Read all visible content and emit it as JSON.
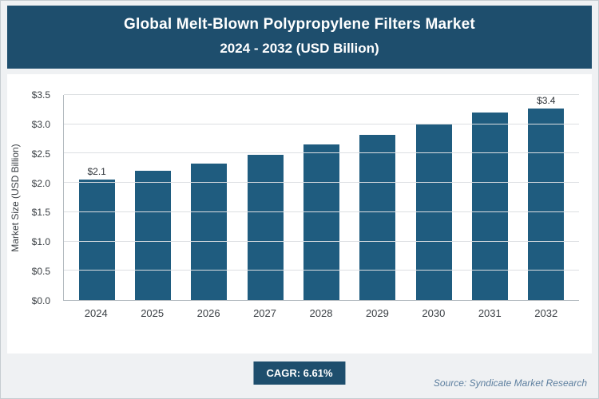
{
  "header": {
    "title_line1": "Global Melt-Blown Polypropylene Filters Market",
    "title_line2": "2024 - 2032 (USD Billion)"
  },
  "chart_data": {
    "type": "bar",
    "title": "Global Melt-Blown Polypropylene Filters Market 2024 - 2032 (USD Billion)",
    "categories": [
      "2024",
      "2025",
      "2026",
      "2027",
      "2028",
      "2029",
      "2030",
      "2031",
      "2032"
    ],
    "values": [
      2.05,
      2.2,
      2.33,
      2.48,
      2.65,
      2.82,
      3.0,
      3.2,
      3.42
    ],
    "bar_labels": [
      "$2.1",
      "",
      "",
      "",
      "",
      "",
      "",
      "",
      "$3.4"
    ],
    "xlabel": "",
    "ylabel": "Market Size (USD Billion)",
    "ylim": [
      0,
      3.5
    ],
    "ytick_step": 0.5,
    "ytick_labels": [
      "$0.0",
      "$0.5",
      "$1.0",
      "$1.5",
      "$2.0",
      "$2.5",
      "$3.0",
      "$3.5"
    ],
    "grid": true,
    "legend": false,
    "bar_color": "#1f5c7f"
  },
  "footer": {
    "cagr_label": "CAGR: 6.61%",
    "source": "Source: Syndicate Market Research"
  },
  "colors": {
    "accent_navy": "#1e4e6d",
    "bar": "#1f5c7f",
    "background": "#eff1f3",
    "gridline": "#dcdfe2"
  }
}
